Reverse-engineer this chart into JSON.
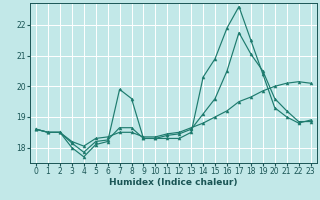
{
  "xlabel": "Humidex (Indice chaleur)",
  "bg_color": "#c2e8e8",
  "grid_color": "#ffffff",
  "line_color": "#1e7b6e",
  "xlim": [
    -0.5,
    23.5
  ],
  "ylim": [
    17.5,
    22.7
  ],
  "yticks": [
    18,
    19,
    20,
    21,
    22
  ],
  "xticks": [
    0,
    1,
    2,
    3,
    4,
    5,
    6,
    7,
    8,
    9,
    10,
    11,
    12,
    13,
    14,
    15,
    16,
    17,
    18,
    19,
    20,
    21,
    22,
    23
  ],
  "series1_x": [
    0,
    1,
    2,
    3,
    4,
    5,
    6,
    7,
    8,
    9,
    10,
    11,
    12,
    13,
    14,
    15,
    16,
    17,
    18,
    19,
    20,
    21,
    22,
    23
  ],
  "series1_y": [
    18.6,
    18.5,
    18.5,
    18.0,
    17.7,
    18.1,
    18.2,
    19.9,
    19.6,
    18.3,
    18.3,
    18.3,
    18.3,
    18.5,
    20.3,
    20.9,
    21.9,
    22.6,
    21.5,
    20.4,
    19.3,
    19.0,
    18.8,
    18.9
  ],
  "series2_x": [
    0,
    1,
    2,
    3,
    4,
    5,
    6,
    7,
    8,
    9,
    10,
    11,
    12,
    13,
    14,
    15,
    16,
    17,
    18,
    19,
    20,
    21,
    22,
    23
  ],
  "series2_y": [
    18.6,
    18.5,
    18.5,
    18.15,
    17.85,
    18.2,
    18.25,
    18.65,
    18.65,
    18.3,
    18.3,
    18.4,
    18.45,
    18.6,
    19.1,
    19.6,
    20.5,
    21.75,
    21.05,
    20.5,
    19.6,
    19.2,
    18.85,
    18.85
  ],
  "series3_x": [
    0,
    1,
    2,
    3,
    4,
    5,
    6,
    7,
    8,
    9,
    10,
    11,
    12,
    13,
    14,
    15,
    16,
    17,
    18,
    19,
    20,
    21,
    22,
    23
  ],
  "series3_y": [
    18.6,
    18.5,
    18.5,
    18.2,
    18.05,
    18.3,
    18.35,
    18.5,
    18.5,
    18.35,
    18.35,
    18.45,
    18.5,
    18.65,
    18.8,
    19.0,
    19.2,
    19.5,
    19.65,
    19.85,
    20.0,
    20.1,
    20.15,
    20.1
  ]
}
